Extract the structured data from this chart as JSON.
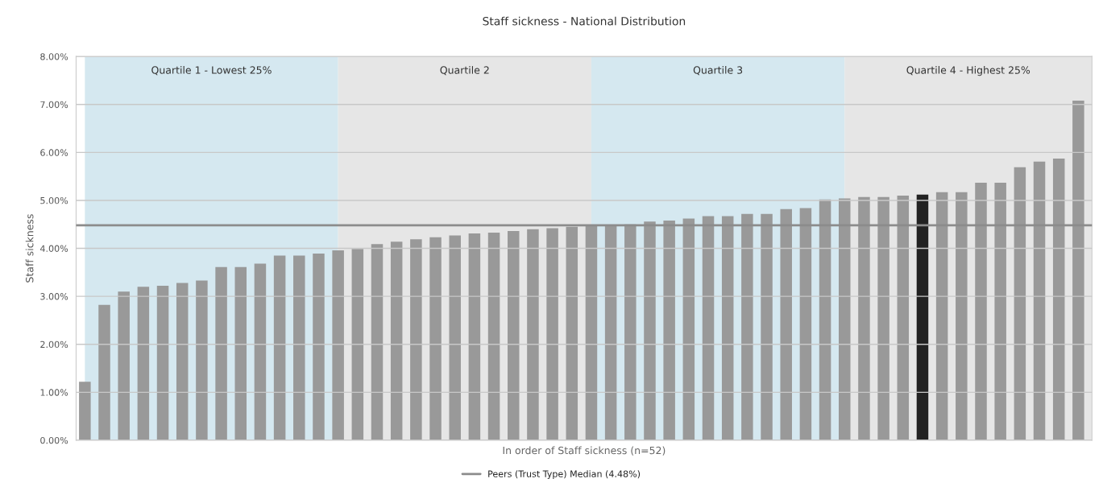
{
  "chart_data": {
    "type": "bar",
    "title": "Staff sickness - National Distribution",
    "xlabel": "In order of Staff sickness (n=52)",
    "ylabel": "Staff sickness",
    "categories": [
      null,
      null,
      null,
      null,
      null,
      null,
      null,
      null,
      null,
      null,
      null,
      null,
      null,
      null,
      null,
      null,
      null,
      null,
      null,
      null,
      null,
      null,
      null,
      null,
      null,
      null,
      null,
      null,
      null,
      null,
      null,
      null,
      null,
      null,
      null,
      null,
      null,
      null,
      null,
      null,
      null,
      null,
      null,
      null,
      null,
      null,
      null,
      null,
      null,
      null,
      null,
      null
    ],
    "values": [
      1.22,
      2.82,
      3.1,
      3.2,
      3.22,
      3.28,
      3.33,
      3.61,
      3.61,
      3.68,
      3.85,
      3.85,
      3.89,
      3.96,
      3.99,
      4.09,
      4.14,
      4.19,
      4.23,
      4.27,
      4.31,
      4.33,
      4.36,
      4.4,
      4.42,
      4.45,
      4.49,
      4.49,
      4.5,
      4.56,
      4.58,
      4.62,
      4.67,
      4.67,
      4.72,
      4.72,
      4.82,
      4.84,
      5.02,
      5.04,
      5.07,
      5.07,
      5.1,
      5.12,
      5.17,
      5.17,
      5.37,
      5.37,
      5.69,
      5.81,
      5.87,
      7.08
    ],
    "colors": [
      "#999999",
      "#999999",
      "#999999",
      "#999999",
      "#999999",
      "#999999",
      "#999999",
      "#999999",
      "#999999",
      "#999999",
      "#999999",
      "#999999",
      "#999999",
      "#999999",
      "#999999",
      "#999999",
      "#999999",
      "#999999",
      "#999999",
      "#999999",
      "#999999",
      "#999999",
      "#999999",
      "#999999",
      "#999999",
      "#999999",
      "#999999",
      "#999999",
      "#999999",
      "#999999",
      "#999999",
      "#999999",
      "#999999",
      "#999999",
      "#999999",
      "#999999",
      "#999999",
      "#999999",
      "#999999",
      "#999999",
      "#999999",
      "#999999",
      "#999999",
      "#222222",
      "#999999",
      "#999999",
      "#999999",
      "#999999",
      "#999999",
      "#999999",
      "#999999",
      "#999999"
    ],
    "ylim": [
      0,
      8
    ],
    "yticks": [
      {
        "value": 0,
        "label": "0.00%"
      },
      {
        "value": 1,
        "label": "1.00%"
      },
      {
        "value": 2,
        "label": "2.00%"
      },
      {
        "value": 3,
        "label": "3.00%"
      },
      {
        "value": 4,
        "label": "4.00%"
      },
      {
        "value": 5,
        "label": "5.00%"
      },
      {
        "value": 6,
        "label": "6.00%"
      },
      {
        "value": 7,
        "label": "7.00%"
      },
      {
        "value": 8,
        "label": "8.00%"
      }
    ],
    "ref_lines": [
      {
        "axis": "y",
        "value": 4.48,
        "label": "Peers (Trust Type) Median (4.48%)",
        "color": "#8c8c8c"
      }
    ],
    "annotations": [
      "Quartile 1 - Lowest 25%",
      "Quartile 2",
      "Quartile 3",
      "Quartile 4 - Highest 25%"
    ],
    "grid": "y",
    "legend": "bottom"
  }
}
